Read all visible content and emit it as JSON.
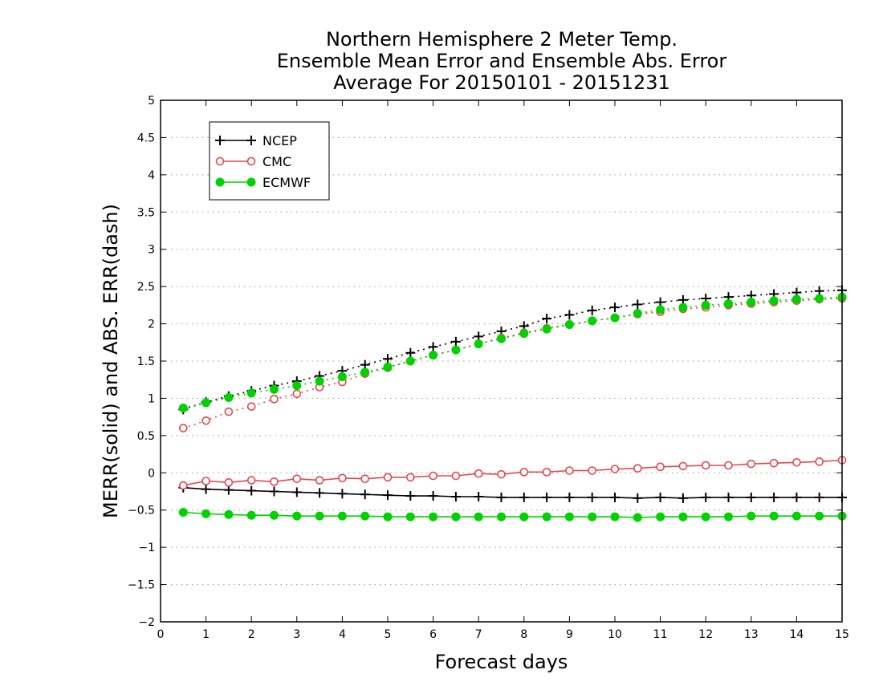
{
  "chart_data": {
    "type": "line",
    "title_lines": [
      "Northern Hemisphere 2 Meter Temp.",
      "Ensemble Mean Error and Ensemble Abs. Error",
      "Average For 20150101 - 20151231"
    ],
    "xlabel": "Forecast days",
    "ylabel": "MERR(solid) and ABS. ERR(dash)",
    "xlim": [
      0,
      15
    ],
    "ylim": [
      -2,
      5
    ],
    "xticks": [
      0,
      1,
      2,
      3,
      4,
      5,
      6,
      7,
      8,
      9,
      10,
      11,
      12,
      13,
      14,
      15
    ],
    "yticks": [
      -2,
      -1.5,
      -1,
      -0.5,
      0,
      0.5,
      1,
      1.5,
      2,
      2.5,
      3,
      3.5,
      4,
      4.5,
      5
    ],
    "ytick_labels": [
      "−2",
      "−1.5",
      "−1",
      "−0.5",
      "0",
      "0.5",
      "1",
      "1.5",
      "2",
      "2.5",
      "3",
      "3.5",
      "4",
      "4.5",
      "5"
    ],
    "grid": "horizontal dotted",
    "legend_position": "top-left",
    "x": [
      0.5,
      1,
      1.5,
      2,
      2.5,
      3,
      3.5,
      4,
      4.5,
      5,
      5.5,
      6,
      6.5,
      7,
      7.5,
      8,
      8.5,
      9,
      9.5,
      10,
      10.5,
      11,
      11.5,
      12,
      12.5,
      13,
      13.5,
      14,
      14.5,
      15
    ],
    "series": [
      {
        "name": "NCEP",
        "color": "#000000",
        "marker": "plus",
        "merr": [
          -0.2,
          -0.22,
          -0.23,
          -0.24,
          -0.25,
          -0.26,
          -0.27,
          -0.28,
          -0.29,
          -0.3,
          -0.31,
          -0.31,
          -0.32,
          -0.32,
          -0.33,
          -0.33,
          -0.33,
          -0.33,
          -0.33,
          -0.33,
          -0.34,
          -0.33,
          -0.34,
          -0.33,
          -0.33,
          -0.33,
          -0.33,
          -0.33,
          -0.33,
          -0.33
        ],
        "abs_err": [
          0.85,
          0.95,
          1.03,
          1.1,
          1.17,
          1.23,
          1.3,
          1.37,
          1.45,
          1.53,
          1.61,
          1.69,
          1.76,
          1.83,
          1.9,
          1.97,
          2.07,
          2.12,
          2.18,
          2.22,
          2.26,
          2.29,
          2.32,
          2.34,
          2.36,
          2.38,
          2.4,
          2.42,
          2.44,
          2.45
        ]
      },
      {
        "name": "CMC",
        "color": "#e8464b",
        "marker": "open-circle",
        "merr": [
          -0.17,
          -0.11,
          -0.13,
          -0.1,
          -0.12,
          -0.08,
          -0.1,
          -0.07,
          -0.08,
          -0.06,
          -0.06,
          -0.04,
          -0.04,
          -0.01,
          -0.02,
          0.01,
          0.01,
          0.03,
          0.03,
          0.05,
          0.06,
          0.08,
          0.09,
          0.1,
          0.1,
          0.12,
          0.13,
          0.14,
          0.15,
          0.17
        ],
        "abs_err": [
          0.6,
          0.7,
          0.82,
          0.89,
          0.99,
          1.06,
          1.15,
          1.22,
          1.33,
          1.41,
          1.5,
          1.58,
          1.65,
          1.73,
          1.81,
          1.88,
          1.94,
          1.99,
          2.04,
          2.08,
          2.13,
          2.16,
          2.2,
          2.22,
          2.25,
          2.27,
          2.29,
          2.31,
          2.33,
          2.34
        ]
      },
      {
        "name": "ECMWF",
        "color": "#00d200",
        "marker": "filled-circle",
        "merr": [
          -0.53,
          -0.55,
          -0.56,
          -0.57,
          -0.57,
          -0.58,
          -0.58,
          -0.58,
          -0.58,
          -0.59,
          -0.59,
          -0.59,
          -0.59,
          -0.59,
          -0.59,
          -0.59,
          -0.59,
          -0.59,
          -0.59,
          -0.59,
          -0.6,
          -0.59,
          -0.59,
          -0.59,
          -0.59,
          -0.58,
          -0.58,
          -0.58,
          -0.58,
          -0.58
        ],
        "abs_err": [
          0.87,
          0.94,
          1.01,
          1.07,
          1.12,
          1.17,
          1.23,
          1.29,
          1.35,
          1.42,
          1.5,
          1.58,
          1.65,
          1.73,
          1.8,
          1.87,
          1.93,
          1.99,
          2.04,
          2.08,
          2.14,
          2.19,
          2.22,
          2.25,
          2.27,
          2.29,
          2.31,
          2.33,
          2.34,
          2.36
        ]
      }
    ]
  }
}
